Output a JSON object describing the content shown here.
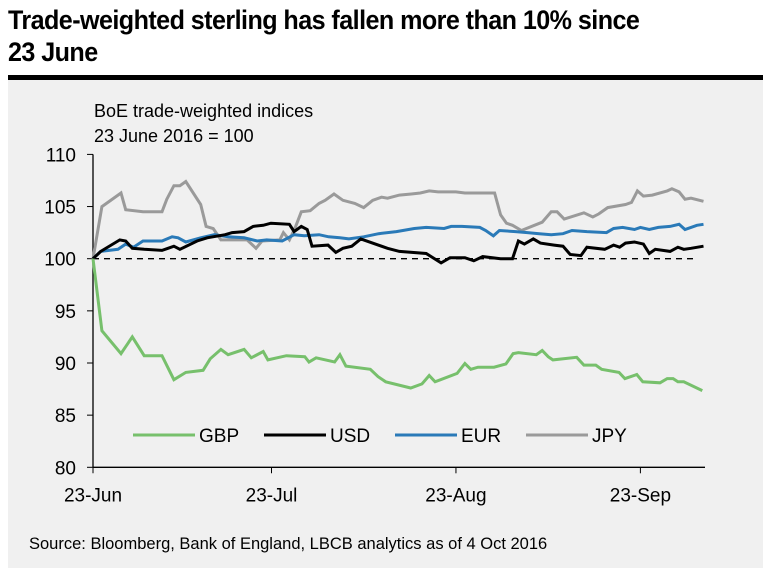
{
  "title": "Trade-weighted sterling has fallen more than 10% since 23 June",
  "title_line1": "Trade-weighted sterling has fallen more than 10% since",
  "title_line2": "23 June",
  "source": "Source: Bloomberg, Bank of England, LBCB analytics as of 4 Oct 2016",
  "colors": {
    "GBP": "#77c06c",
    "USD": "#000000",
    "EUR": "#2a7ab8",
    "JPY": "#9a9a9a",
    "background": "#f0f0f0"
  },
  "chart_data": {
    "type": "line",
    "title": "BoE trade-weighted indices",
    "subtitle": "23 June 2016 = 100",
    "xlabel": "",
    "ylabel": "",
    "x_unit": "days since 23-Jun-2016",
    "xlim": [
      0,
      103
    ],
    "ylim": [
      80,
      110
    ],
    "yticks": [
      80,
      85,
      90,
      95,
      100,
      105,
      110
    ],
    "xticks": [
      {
        "day": 0,
        "label": "23-Jun"
      },
      {
        "day": 30,
        "label": "23-Jul"
      },
      {
        "day": 61,
        "label": "23-Aug"
      },
      {
        "day": 92,
        "label": "23-Sep"
      }
    ],
    "reference_line": {
      "y": 100,
      "style": "dashed"
    },
    "grid": false,
    "legend": {
      "placement": "bottom-center",
      "entries": [
        "GBP",
        "USD",
        "EUR",
        "JPY"
      ]
    },
    "series": [
      {
        "name": "GBP",
        "points": [
          [
            0,
            100
          ],
          [
            1.5,
            93.1
          ],
          [
            4.7,
            90.9
          ],
          [
            6.6,
            92.5
          ],
          [
            8.6,
            90.7
          ],
          [
            11.6,
            90.7
          ],
          [
            13.6,
            88.4
          ],
          [
            15.6,
            89.1
          ],
          [
            18.5,
            89.3
          ],
          [
            19.7,
            90.4
          ],
          [
            21.5,
            91.3
          ],
          [
            22.7,
            90.8
          ],
          [
            25.4,
            91.3
          ],
          [
            26.6,
            90.5
          ],
          [
            28.6,
            91.1
          ],
          [
            29.4,
            90.3
          ],
          [
            32.5,
            90.7
          ],
          [
            35.6,
            90.6
          ],
          [
            36.3,
            90.1
          ],
          [
            37.5,
            90.5
          ],
          [
            40.6,
            90.1
          ],
          [
            41.5,
            90.8
          ],
          [
            42.5,
            89.7
          ],
          [
            46.6,
            89.4
          ],
          [
            47.9,
            88.7
          ],
          [
            49.2,
            88.2
          ],
          [
            53.4,
            87.6
          ],
          [
            55.3,
            88.0
          ],
          [
            56.5,
            88.8
          ],
          [
            57.5,
            88.2
          ],
          [
            61.2,
            89.0
          ],
          [
            62.5,
            89.95
          ],
          [
            63.5,
            89.4
          ],
          [
            64.7,
            89.6
          ],
          [
            67.4,
            89.6
          ],
          [
            69.4,
            89.9
          ],
          [
            70.6,
            90.9
          ],
          [
            71.5,
            91.0
          ],
          [
            74.5,
            90.8
          ],
          [
            75.5,
            91.2
          ],
          [
            76.5,
            90.6
          ],
          [
            77.3,
            90.3
          ],
          [
            81.3,
            90.55
          ],
          [
            82.5,
            89.8
          ],
          [
            84.5,
            89.8
          ],
          [
            85.5,
            89.4
          ],
          [
            88.4,
            89.1
          ],
          [
            89.4,
            88.5
          ],
          [
            91.4,
            88.9
          ],
          [
            92.4,
            88.2
          ],
          [
            95.3,
            88.1
          ],
          [
            96.5,
            88.5
          ],
          [
            97.5,
            88.5
          ],
          [
            98.3,
            88.2
          ],
          [
            99.3,
            88.2
          ],
          [
            102.4,
            87.35
          ]
        ]
      },
      {
        "name": "USD",
        "points": [
          [
            0,
            100
          ],
          [
            1.3,
            100.7
          ],
          [
            4.5,
            101.8
          ],
          [
            5.5,
            101.7
          ],
          [
            6.6,
            101.0
          ],
          [
            8.6,
            100.9
          ],
          [
            11.6,
            100.8
          ],
          [
            12.6,
            101.0
          ],
          [
            13.6,
            101.2
          ],
          [
            14.6,
            100.9
          ],
          [
            17.5,
            101.7
          ],
          [
            19.2,
            102.0
          ],
          [
            22.2,
            102.3
          ],
          [
            23.4,
            102.5
          ],
          [
            25.4,
            102.6
          ],
          [
            26.9,
            103.1
          ],
          [
            28.6,
            103.2
          ],
          [
            29.9,
            103.4
          ],
          [
            33.0,
            103.3
          ],
          [
            33.8,
            102.6
          ],
          [
            35.0,
            103.1
          ],
          [
            36.0,
            102.8
          ],
          [
            36.8,
            101.2
          ],
          [
            39.5,
            101.3
          ],
          [
            40.8,
            100.6
          ],
          [
            42.0,
            101.0
          ],
          [
            43.5,
            101.2
          ],
          [
            45.0,
            101.9
          ],
          [
            49.5,
            101.0
          ],
          [
            51.5,
            100.7
          ],
          [
            56.0,
            100.5
          ],
          [
            58.5,
            99.6
          ],
          [
            60.0,
            100.1
          ],
          [
            62.5,
            100.1
          ],
          [
            64.0,
            99.8
          ],
          [
            65.5,
            100.2
          ],
          [
            68.5,
            100.0
          ],
          [
            70.5,
            100.0
          ],
          [
            71.5,
            101.7
          ],
          [
            72.5,
            101.4
          ],
          [
            74.0,
            101.9
          ],
          [
            75.2,
            101.5
          ],
          [
            77.5,
            101.3
          ],
          [
            79.0,
            101.2
          ],
          [
            80.2,
            100.4
          ],
          [
            82.0,
            100.3
          ],
          [
            83.0,
            101.1
          ],
          [
            86.0,
            100.9
          ],
          [
            87.5,
            101.3
          ],
          [
            88.5,
            101.1
          ],
          [
            89.5,
            101.5
          ],
          [
            91.0,
            101.6
          ],
          [
            92.5,
            101.4
          ],
          [
            93.5,
            100.5
          ],
          [
            94.5,
            100.9
          ],
          [
            97.0,
            100.7
          ],
          [
            98.3,
            101.1
          ],
          [
            99.3,
            100.9
          ],
          [
            100.5,
            101.0
          ],
          [
            102.6,
            101.2
          ]
        ]
      },
      {
        "name": "EUR",
        "points": [
          [
            0,
            100
          ],
          [
            1.3,
            100.7
          ],
          [
            4.2,
            100.9
          ],
          [
            5.5,
            101.4
          ],
          [
            6.8,
            101.1
          ],
          [
            8.4,
            101.7
          ],
          [
            11.6,
            101.7
          ],
          [
            13.3,
            102.1
          ],
          [
            14.3,
            102.0
          ],
          [
            15.6,
            101.6
          ],
          [
            18.1,
            102.0
          ],
          [
            20.4,
            102.3
          ],
          [
            22.7,
            102.1
          ],
          [
            25.4,
            102.0
          ],
          [
            27.6,
            101.7
          ],
          [
            29.2,
            101.8
          ],
          [
            31.8,
            101.7
          ],
          [
            33.8,
            102.3
          ],
          [
            35.5,
            102.2
          ],
          [
            38.0,
            102.3
          ],
          [
            39.6,
            102.1
          ],
          [
            41.5,
            102.0
          ],
          [
            43.0,
            101.9
          ],
          [
            45.5,
            102.1
          ],
          [
            48.0,
            102.4
          ],
          [
            51.0,
            102.6
          ],
          [
            54.0,
            102.9
          ],
          [
            56.0,
            103.0
          ],
          [
            59.0,
            102.9
          ],
          [
            60.2,
            103.1
          ],
          [
            62.0,
            103.1
          ],
          [
            65.0,
            103.0
          ],
          [
            66.0,
            102.7
          ],
          [
            67.3,
            102.2
          ],
          [
            68.3,
            102.7
          ],
          [
            71.0,
            102.6
          ],
          [
            73.0,
            102.5
          ],
          [
            75.0,
            102.4
          ],
          [
            77.0,
            102.3
          ],
          [
            79.0,
            102.4
          ],
          [
            80.5,
            102.7
          ],
          [
            83.0,
            102.6
          ],
          [
            86.3,
            102.5
          ],
          [
            87.5,
            102.9
          ],
          [
            89.0,
            103.0
          ],
          [
            91.0,
            102.8
          ],
          [
            92.0,
            103.0
          ],
          [
            93.5,
            102.8
          ],
          [
            95.0,
            103.0
          ],
          [
            97.0,
            103.1
          ],
          [
            98.5,
            103.3
          ],
          [
            99.5,
            102.8
          ],
          [
            101.5,
            103.2
          ],
          [
            102.6,
            103.3
          ]
        ]
      },
      {
        "name": "JPY",
        "points": [
          [
            0,
            100
          ],
          [
            1.5,
            105.0
          ],
          [
            4.7,
            106.3
          ],
          [
            5.5,
            104.7
          ],
          [
            8.4,
            104.5
          ],
          [
            11.6,
            104.5
          ],
          [
            12.4,
            105.7
          ],
          [
            13.6,
            107.0
          ],
          [
            14.6,
            107.0
          ],
          [
            15.6,
            107.4
          ],
          [
            18.1,
            105.2
          ],
          [
            19.0,
            103.1
          ],
          [
            20.2,
            102.9
          ],
          [
            21.5,
            101.8
          ],
          [
            25.9,
            101.8
          ],
          [
            27.4,
            101.0
          ],
          [
            28.4,
            101.7
          ],
          [
            31.4,
            101.8
          ],
          [
            32.0,
            102.5
          ],
          [
            33.0,
            101.8
          ],
          [
            34.0,
            103.0
          ],
          [
            35.0,
            104.5
          ],
          [
            36.5,
            104.6
          ],
          [
            38.0,
            105.3
          ],
          [
            39.0,
            105.6
          ],
          [
            40.5,
            106.2
          ],
          [
            42.0,
            105.6
          ],
          [
            44.0,
            105.3
          ],
          [
            45.5,
            104.9
          ],
          [
            47.0,
            105.6
          ],
          [
            48.5,
            105.9
          ],
          [
            49.5,
            105.8
          ],
          [
            51.5,
            106.1
          ],
          [
            53.5,
            106.2
          ],
          [
            55.0,
            106.3
          ],
          [
            56.5,
            106.5
          ],
          [
            58.0,
            106.4
          ],
          [
            61.0,
            106.4
          ],
          [
            62.5,
            106.3
          ],
          [
            64.5,
            106.3
          ],
          [
            67.5,
            106.3
          ],
          [
            68.5,
            104.2
          ],
          [
            69.5,
            103.4
          ],
          [
            70.5,
            103.2
          ],
          [
            72.0,
            102.7
          ],
          [
            75.5,
            103.5
          ],
          [
            77.0,
            104.5
          ],
          [
            78.0,
            104.5
          ],
          [
            79.2,
            103.8
          ],
          [
            82.5,
            104.4
          ],
          [
            84.0,
            104.0
          ],
          [
            85.0,
            104.3
          ],
          [
            86.5,
            104.9
          ],
          [
            89.5,
            105.2
          ],
          [
            90.5,
            105.4
          ],
          [
            91.5,
            106.5
          ],
          [
            92.5,
            106.0
          ],
          [
            94.0,
            106.1
          ],
          [
            96.5,
            106.5
          ],
          [
            97.3,
            106.7
          ],
          [
            98.5,
            106.4
          ],
          [
            99.5,
            105.7
          ],
          [
            100.5,
            105.8
          ],
          [
            102.6,
            105.5
          ]
        ]
      }
    ]
  }
}
